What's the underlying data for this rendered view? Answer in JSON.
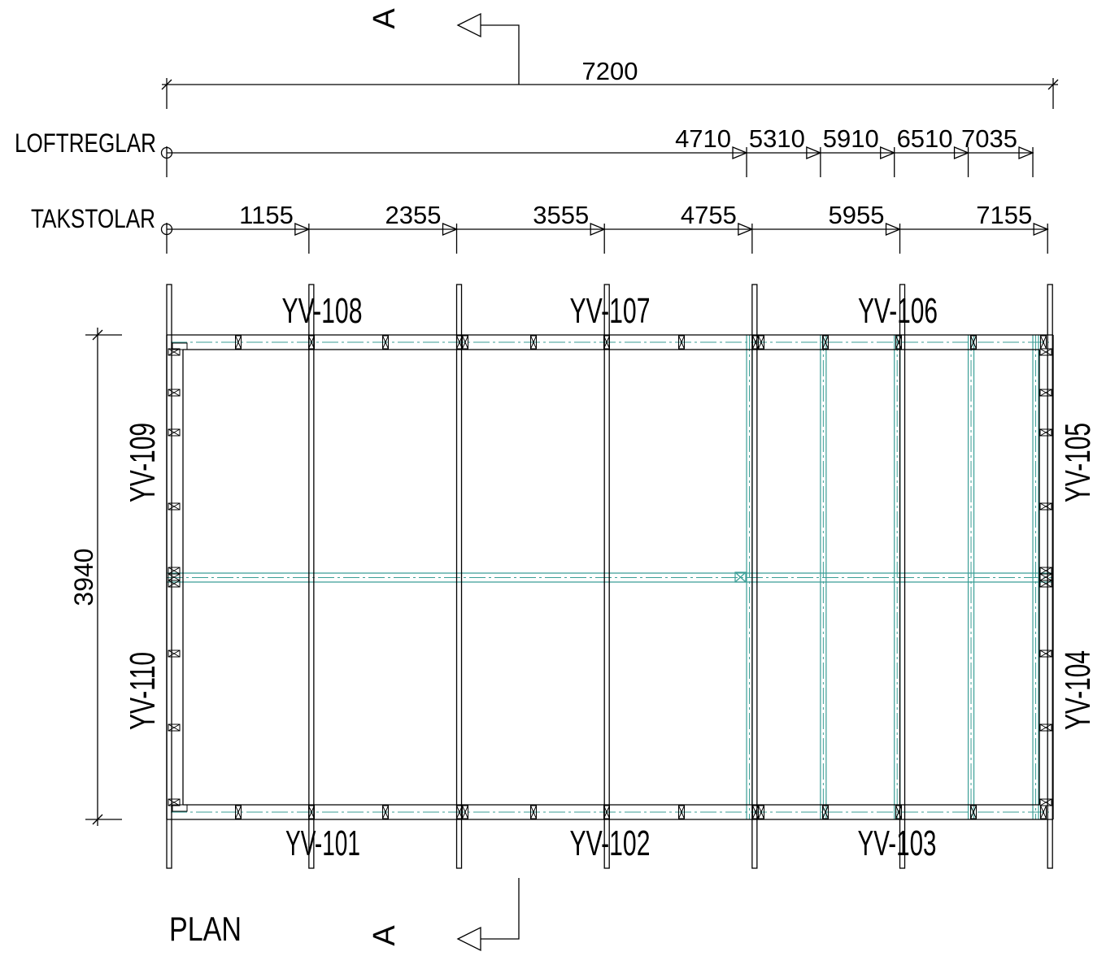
{
  "section_marker": {
    "label": "A"
  },
  "overall_dimension": {
    "value": 7200
  },
  "loftreglar": {
    "label": "LOFTREGLAR",
    "values": [
      4710,
      5310,
      5910,
      6510,
      7035
    ]
  },
  "takstolar": {
    "label": "TAKSTOLAR",
    "values": [
      1155,
      2355,
      3555,
      4755,
      5955,
      7155
    ]
  },
  "depth_dimension": {
    "value": 3940
  },
  "walls": {
    "top": [
      "YV-108",
      "YV-107",
      "YV-106"
    ],
    "bottom": [
      "YV-101",
      "YV-102",
      "YV-103"
    ],
    "left": [
      "YV-109",
      "YV-110"
    ],
    "right": [
      "YV-105",
      "YV-104"
    ]
  },
  "view_title": "PLAN",
  "colors": {
    "line": "#000000",
    "batten": "#3a9e96",
    "background": "#ffffff"
  }
}
